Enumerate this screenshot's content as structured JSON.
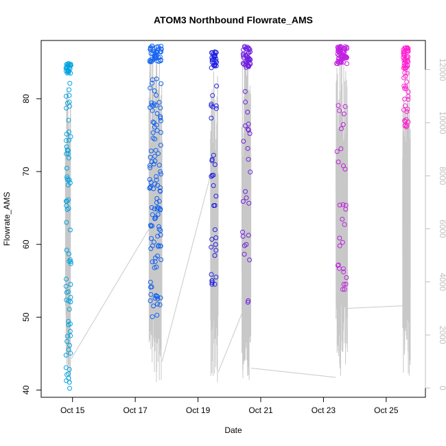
{
  "chart_data": {
    "type": "scatter",
    "title": "ATOM3 Northbound Flowrate_AMS",
    "xlabel": "Date",
    "ylabel": "Flowrate_AMS",
    "xlim": [
      "2023-10-14 00:00",
      "2023-10-26 06:00"
    ],
    "ylim": [
      39,
      88
    ],
    "x_ticks": [
      "Oct 15",
      "Oct 17",
      "Oct 19",
      "Oct 21",
      "Oct 23",
      "Oct 25"
    ],
    "y_ticks": [
      40,
      50,
      60,
      70,
      80
    ],
    "y2_ticks": [
      0,
      2000,
      4000,
      6000,
      8000,
      10000,
      12000
    ],
    "y2lim": [
      -350,
      13100
    ],
    "grid": false,
    "series": [
      {
        "kind": "points",
        "color_scale": [
          "#00a3e0",
          "#1060f0",
          "#2020e0",
          "#7020e0",
          "#c020e0",
          "#ff20d0"
        ],
        "clusters": [
          {
            "x_start": "2023-10-14 19:00",
            "x_end": "2023-10-14 22:50",
            "y_top": [
              83.5,
              85
            ],
            "y_scatter": [
              40.2,
              84
            ],
            "n_top": 24,
            "n_scatter": 70
          },
          {
            "x_start": "2023-10-17 11:00",
            "x_end": "2023-10-17 20:00",
            "y_top": [
              85,
              87.3
            ],
            "y_scatter": [
              50,
              84
            ],
            "n_top": 40,
            "n_scatter": 110
          },
          {
            "x_start": "2023-10-19 10:00",
            "x_end": "2023-10-19 14:30",
            "y_top": [
              84.5,
              86.5
            ],
            "y_scatter": [
              54,
              86
            ],
            "n_top": 25,
            "n_scatter": 35
          },
          {
            "x_start": "2023-10-20 10:00",
            "x_end": "2023-10-20 16:00",
            "y_top": [
              84.3,
              87.2
            ],
            "y_scatter": [
              51.5,
              84
            ],
            "n_top": 45,
            "n_scatter": 25
          },
          {
            "x_start": "2023-10-23 10:00",
            "x_end": "2023-10-23 18:00",
            "y_top": [
              84.8,
              87.4
            ],
            "y_scatter": [
              53.5,
              79.2
            ],
            "n_top": 60,
            "n_scatter": 30
          },
          {
            "x_start": "2023-10-25 13:00",
            "x_end": "2023-10-25 17:00",
            "y_top": [
              84.2,
              87.1
            ],
            "y_scatter": [
              76,
              84
            ],
            "n_top": 40,
            "n_scatter": 25
          }
        ]
      },
      {
        "kind": "line",
        "color": "#c8c8c8",
        "spikes": [
          {
            "x_start": "2023-10-14 18:30",
            "x_end": "2023-10-14 22:30",
            "low": 200,
            "high": 11800
          },
          {
            "x_start": "2023-10-17 10:30",
            "x_end": "2023-10-17 20:30",
            "low": 200,
            "high": 12800
          },
          {
            "x_start": "2023-10-19 09:30",
            "x_end": "2023-10-19 15:30",
            "low": 200,
            "high": 12200
          },
          {
            "x_start": "2023-10-20 09:30",
            "x_end": "2023-10-20 16:30",
            "low": 200,
            "high": 12800
          },
          {
            "x_start": "2023-10-23 09:30",
            "x_end": "2023-10-23 18:30",
            "low": 400,
            "high": 12800
          },
          {
            "x_start": "2023-10-25 12:30",
            "x_end": "2023-10-25 18:30",
            "low": 200,
            "high": 12500
          }
        ],
        "connectors": [
          {
            "from": [
              "2023-10-14 23:00",
              1100
            ],
            "to": [
              "2023-10-17 10:30",
              6000
            ]
          },
          {
            "from": [
              "2023-10-17 20:30",
              1000
            ],
            "to": [
              "2023-10-19 09:30",
              8000
            ]
          },
          {
            "from": [
              "2023-10-19 15:30",
              600
            ],
            "to": [
              "2023-10-20 09:30",
              2800
            ]
          },
          {
            "from": [
              "2023-10-20 16:30",
              750
            ],
            "to": [
              "2023-10-23 09:30",
              400
            ]
          },
          {
            "from": [
              "2023-10-23 18:30",
              3000
            ],
            "to": [
              "2023-10-25 12:30",
              3100
            ]
          }
        ]
      }
    ]
  }
}
